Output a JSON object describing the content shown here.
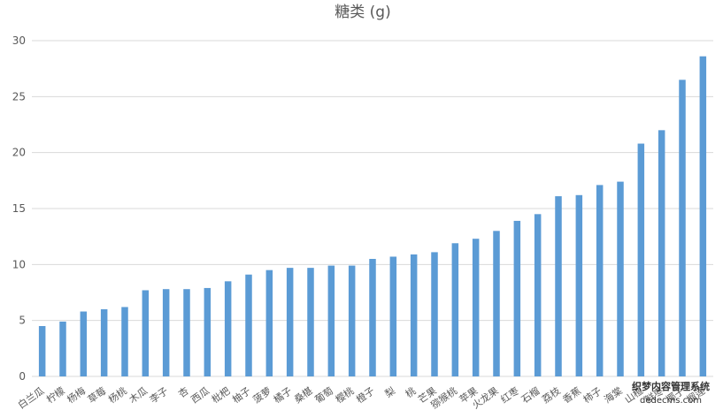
{
  "chart_data": {
    "type": "bar",
    "title": "糖类 (g)",
    "xlabel": "",
    "ylabel": "",
    "ylim": [
      0,
      30
    ],
    "yticks": [
      0,
      5,
      10,
      15,
      20,
      25,
      30
    ],
    "grid": true,
    "legend": "none",
    "bar_color": "#5b9bd5",
    "categories": [
      "白兰瓜",
      "柠檬",
      "杨梅",
      "草莓",
      "杨桃",
      "木瓜",
      "李子",
      "杏",
      "西瓜",
      "枇杷",
      "柚子",
      "菠萝",
      "橘子",
      "桑椹",
      "葡萄",
      "樱桃",
      "橙子",
      "梨",
      "桃",
      "芒果",
      "猕猴桃",
      "苹果",
      "火龙果",
      "红枣",
      "石榴",
      "荔枝",
      "香蕉",
      "柿子",
      "海棠",
      "山楂",
      "鲜枣",
      "椰子",
      "榴莲"
    ],
    "values": [
      4.5,
      4.9,
      5.8,
      6.0,
      6.2,
      7.7,
      7.8,
      7.8,
      7.9,
      8.5,
      9.1,
      9.5,
      9.7,
      9.7,
      9.9,
      9.9,
      10.5,
      10.7,
      10.9,
      11.1,
      11.9,
      12.3,
      13.0,
      13.9,
      14.5,
      16.1,
      16.2,
      17.1,
      17.4,
      20.8,
      22.0,
      26.5,
      28.6
    ]
  },
  "watermark": {
    "line1": "织梦内容管理系统",
    "line2": "dedecms.com"
  }
}
